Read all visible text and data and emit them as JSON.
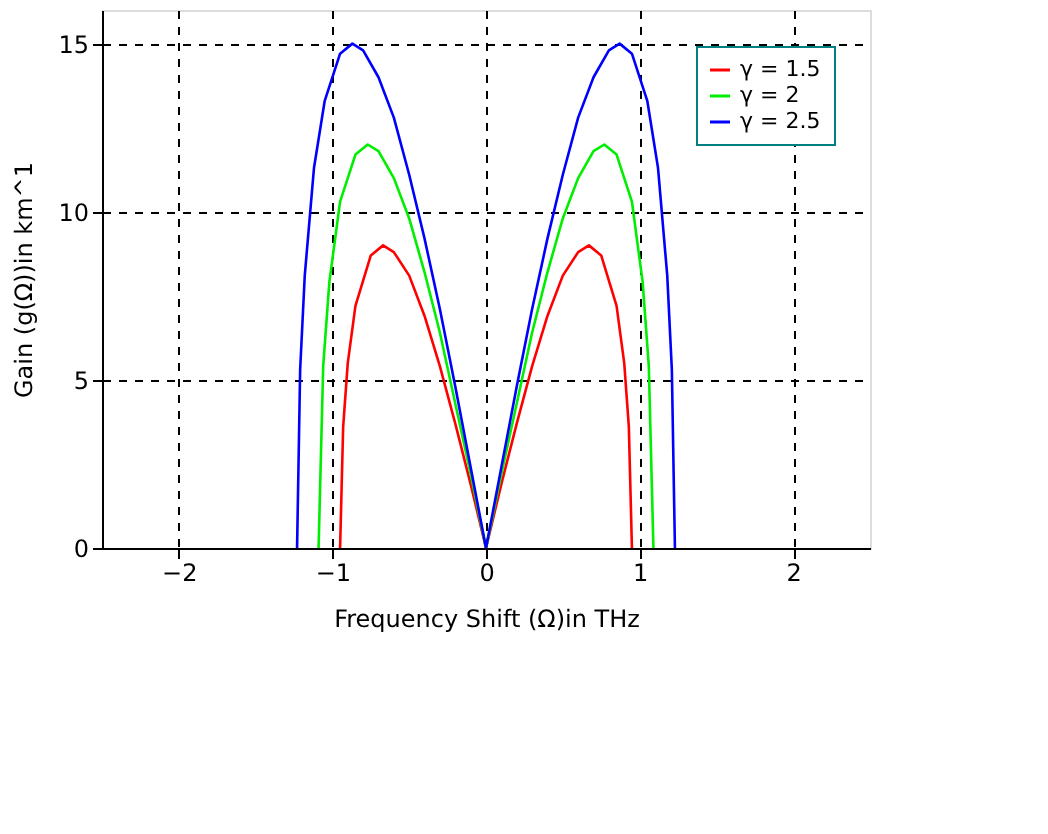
{
  "chart_data": {
    "type": "line",
    "xlabel": "Frequency Shift (Ω)in THz",
    "ylabel": "Gain (g(Ω))in km^1",
    "xlim": [
      -2.5,
      2.5
    ],
    "xticks": [
      -2,
      -1,
      0,
      1,
      2
    ],
    "ylim": [
      0,
      16
    ],
    "yticks": [
      0,
      5,
      10,
      15
    ],
    "grid": true,
    "legend": "top right",
    "marker": "none",
    "line_style": "solid",
    "series": [
      {
        "name": "γ = 1.5",
        "color": "#ff0000",
        "x": [
          -0.95,
          -0.93,
          -0.9,
          -0.85,
          -0.75,
          -0.67,
          -0.6,
          -0.5,
          -0.4,
          -0.3,
          -0.2,
          -0.1,
          0,
          0.1,
          0.2,
          0.3,
          0.4,
          0.5,
          0.6,
          0.67,
          0.75,
          0.85,
          0.9,
          0.93,
          0.95
        ],
        "values": [
          0,
          3.6,
          5.5,
          7.2,
          8.7,
          9.0,
          8.8,
          8.1,
          6.9,
          5.4,
          3.7,
          1.9,
          0,
          1.9,
          3.7,
          5.4,
          6.9,
          8.1,
          8.8,
          9.0,
          8.7,
          7.2,
          5.5,
          3.6,
          0
        ]
      },
      {
        "name": "γ = 2",
        "color": "#00ee00",
        "x": [
          -1.09,
          -1.06,
          -1.02,
          -0.95,
          -0.85,
          -0.77,
          -0.7,
          -0.6,
          -0.5,
          -0.4,
          -0.3,
          -0.2,
          -0.1,
          0,
          0.1,
          0.2,
          0.3,
          0.4,
          0.5,
          0.6,
          0.7,
          0.77,
          0.85,
          0.95,
          1.02,
          1.06,
          1.09
        ],
        "values": [
          0,
          5.4,
          7.9,
          10.3,
          11.7,
          12.0,
          11.8,
          11.0,
          9.8,
          8.2,
          6.4,
          4.3,
          2.2,
          0,
          2.2,
          4.3,
          6.4,
          8.2,
          9.8,
          11.0,
          11.8,
          12.0,
          11.7,
          10.3,
          7.9,
          5.4,
          0
        ]
      },
      {
        "name": "γ = 2.5",
        "color": "#0000ff",
        "x": [
          -1.23,
          -1.21,
          -1.18,
          -1.12,
          -1.05,
          -0.95,
          -0.87,
          -0.8,
          -0.7,
          -0.6,
          -0.5,
          -0.4,
          -0.3,
          -0.2,
          -0.1,
          0,
          0.1,
          0.2,
          0.3,
          0.4,
          0.5,
          0.6,
          0.7,
          0.8,
          0.87,
          0.95,
          1.05,
          1.12,
          1.18,
          1.21,
          1.23
        ],
        "values": [
          0,
          5.3,
          8.1,
          11.3,
          13.3,
          14.7,
          15.0,
          14.8,
          14.0,
          12.8,
          11.1,
          9.2,
          7.1,
          4.8,
          2.4,
          0,
          2.4,
          4.8,
          7.1,
          9.2,
          11.1,
          12.8,
          14.0,
          14.8,
          15.0,
          14.7,
          13.3,
          11.3,
          8.1,
          5.3,
          0
        ]
      }
    ]
  }
}
